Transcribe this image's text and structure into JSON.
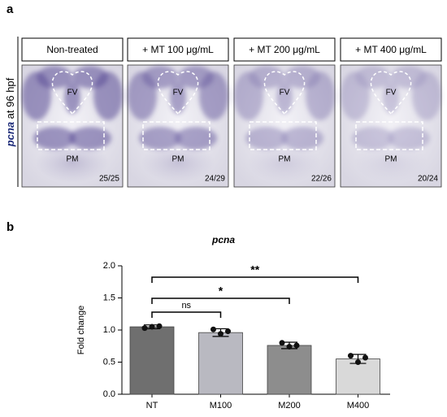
{
  "panel_a": {
    "label": "a",
    "y_label_gene": "pcna",
    "y_label_rest": " at 96 hpf",
    "conditions": [
      "Non-treated",
      "+ MT 100 μg/mL",
      "+ MT 200 μg/mL",
      "+ MT 400 μg/mL"
    ],
    "region_top": "FV",
    "region_bottom": "PM",
    "counts": [
      "25/25",
      "24/29",
      "22/26",
      "20/24"
    ]
  },
  "panel_b": {
    "label": "b",
    "significance": [
      "ns",
      "*",
      "**"
    ]
  },
  "chart_data": {
    "type": "bar",
    "title": "pcna",
    "ylabel": "Fold change",
    "categories": [
      "NT",
      "M100",
      "M200",
      "M400"
    ],
    "values": [
      1.05,
      0.96,
      0.76,
      0.55
    ],
    "errors": [
      0.03,
      0.06,
      0.05,
      0.07
    ],
    "points": [
      [
        1.03,
        1.05,
        1.06
      ],
      [
        1.01,
        0.94,
        0.98
      ],
      [
        0.8,
        0.74,
        0.76
      ],
      [
        0.6,
        0.5,
        0.57
      ]
    ],
    "colors": [
      "#6f6f6f",
      "#b9b9c1",
      "#8d8d8d",
      "#d9d9d9"
    ],
    "ylim": [
      0,
      2
    ],
    "yticks": [
      {
        "value": 0,
        "label": "0.0"
      },
      {
        "value": 0.5,
        "label": "0.5"
      },
      {
        "value": 1,
        "label": "1.0"
      },
      {
        "value": 1.5,
        "label": "1.5"
      },
      {
        "value": 2,
        "label": "2.0"
      }
    ]
  }
}
